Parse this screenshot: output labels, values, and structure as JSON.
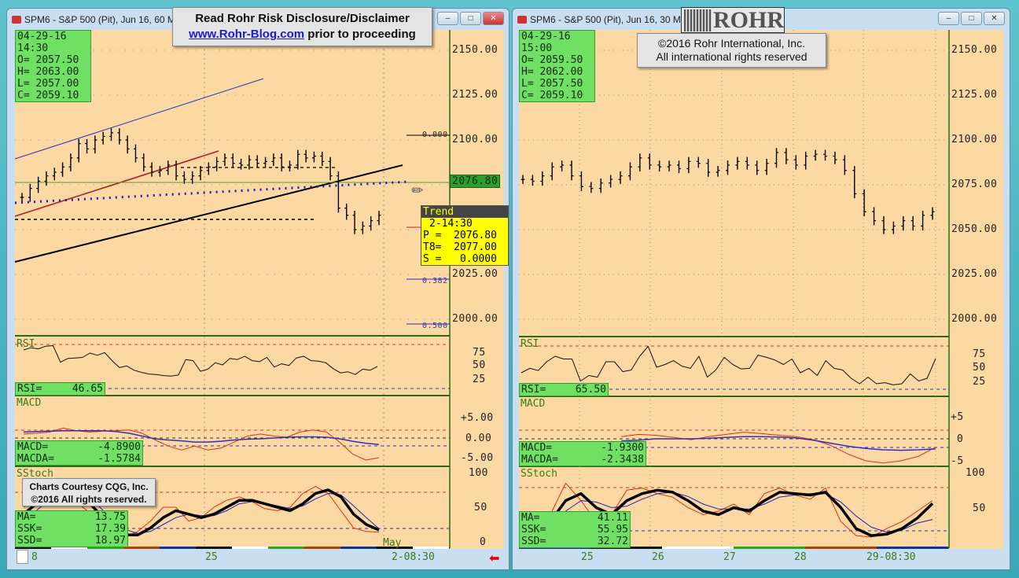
{
  "left_window": {
    "title": "SPM6 - S&P 500 (Pit), Jun 16, 60 Min",
    "ohlc": {
      "date": "04-29-16",
      "time": "14:30",
      "open": "O= 2057.50",
      "high": "H= 2063.00",
      "low": "L= 2057.00",
      "close": "C= 2059.10"
    },
    "price_axis": [
      "2150.00",
      "2125.00",
      "2100.00",
      "2076.80",
      "2025.00",
      "2000.00"
    ],
    "fib_labels": [
      "0.000",
      "0.382",
      "0.500"
    ],
    "tooltip": {
      "title": "Trend",
      "time": "2-14:30",
      "p": "P =  2076.80",
      "t8": "T8=  2077.00",
      "s": "S =   0.0000"
    },
    "rsi": {
      "name": "RSI",
      "label": "RSI=",
      "value": "46.65",
      "axis": [
        "75",
        "50",
        "25"
      ]
    },
    "macd": {
      "name": "MACD",
      "macd_label": "MACD=",
      "macd_value": "-4.8900",
      "macda_label": "MACDA=",
      "macda_value": "-1.5784",
      "axis": [
        "+5.00",
        "0.00",
        "-5.00"
      ]
    },
    "stoch": {
      "name": "SStoch",
      "ma_label": "MA=",
      "ma_value": "13.75",
      "ssk_label": "SSK=",
      "ssk_value": "17.39",
      "ssd_label": "SSD=",
      "ssd_value": "18.97",
      "axis": [
        "100",
        "50",
        "0"
      ],
      "month_label": "May"
    },
    "x_axis": [
      "8",
      "25",
      "2-08:30"
    ],
    "notice": {
      "line1": "Read Rohr Risk Disclosure/Disclaimer",
      "link": "www.Rohr-Blog.com",
      "line2_rest": " prior to proceeding"
    },
    "credit": {
      "line1": "Charts Courtesy CQG, Inc.",
      "line2": "©2016 All rights reserved."
    }
  },
  "right_window": {
    "title": "SPM6 - S&P 500 (Pit), Jun 16, 30 Min",
    "ohlc": {
      "date": "04-29-16",
      "time": "15:00",
      "open": "O= 2059.50",
      "high": "H= 2062.00",
      "low": "L= 2057.50",
      "close": "C= 2059.10"
    },
    "price_axis": [
      "2150.00",
      "2125.00",
      "2100.00",
      "2075.00",
      "2050.00",
      "2025.00",
      "2000.00"
    ],
    "logo": "ROHR",
    "notice": {
      "line1": "©2016 Rohr International, Inc.",
      "line2": "All international rights reserved"
    },
    "rsi": {
      "name": "RSI",
      "label": "RSI=",
      "value": "65.50",
      "axis": [
        "75",
        "50",
        "25"
      ]
    },
    "macd": {
      "name": "MACD",
      "macd_label": "MACD=",
      "macd_value": "-1.9300",
      "macda_label": "MACDA=",
      "macda_value": "-2.3438",
      "axis": [
        "+5",
        "0",
        "-5"
      ]
    },
    "stoch": {
      "name": "SStoch",
      "ma_label": "MA=",
      "ma_value": "41.11",
      "ssk_label": "SSK=",
      "ssk_value": "55.95",
      "ssd_label": "SSD=",
      "ssd_value": "32.72",
      "axis": [
        "100",
        "50"
      ]
    },
    "x_axis": [
      "25",
      "26",
      "27",
      "28",
      "29-08:30"
    ]
  },
  "colors": {
    "plot_bg": "#fcd9a2",
    "green_box": "#6fe063",
    "tooltip": "#ffff00",
    "last_price": "#2aa02a"
  },
  "chart_data": [
    {
      "type": "line",
      "series": [
        {
          "name": "price",
          "values": [
            2068,
            2073,
            2077,
            2080,
            2082,
            2085,
            2090,
            2098,
            2095,
            2100,
            2102,
            2104,
            2100,
            2095,
            2090,
            2085,
            2082,
            2083,
            2086,
            2080,
            2078,
            2080,
            2083,
            2085,
            2088,
            2090,
            2087,
            2086,
            2089,
            2087,
            2088,
            2090,
            2085,
            2086,
            2092,
            2090,
            2091,
            2088,
            2080,
            2062,
            2058,
            2050,
            2052,
            2055,
            2058
          ]
        },
        {
          "name": "RSI",
          "values": [
            78,
            82,
            80,
            85,
            86,
            55,
            62,
            63,
            64,
            72,
            68,
            73,
            58,
            45,
            48,
            40,
            36,
            33,
            32,
            30,
            29,
            31,
            60,
            58,
            38,
            42,
            54,
            50,
            62,
            60,
            66,
            58,
            56,
            64,
            46,
            52,
            49,
            63,
            66,
            58,
            57,
            54,
            43,
            35,
            37,
            32,
            42,
            40,
            47
          ]
        },
        {
          "name": "MACD",
          "values": [
            1.0,
            1.2,
            1.5,
            2.5,
            1.8,
            1.5,
            1.7,
            1.8,
            2.0,
            1.2,
            -0.5,
            -2.0,
            -3.0,
            -2.0,
            -3.0,
            -2.5,
            -1.0,
            0.5,
            1.0,
            0.5,
            0.2,
            1.5,
            2.0,
            1.5,
            -1.0,
            -4.0,
            -5.5,
            -4.9
          ]
        },
        {
          "name": "MACDA",
          "values": [
            1.5,
            1.6,
            1.7,
            1.8,
            1.8,
            1.8,
            1.8,
            1.6,
            1.2,
            0.5,
            -0.2,
            -0.5,
            -0.7,
            -1.0,
            -1.0,
            -0.8,
            -0.5,
            -0.3,
            -0.2,
            0.0,
            0.2,
            0.3,
            0.3,
            0.2,
            -0.2,
            -0.8,
            -1.3,
            -1.6
          ]
        },
        {
          "name": "SSK",
          "values": [
            40,
            55,
            70,
            75,
            70,
            60,
            40,
            20,
            10,
            10,
            20,
            35,
            45,
            40,
            35,
            40,
            50,
            60,
            60,
            55,
            50,
            45,
            55,
            70,
            75,
            65,
            40,
            25,
            17
          ]
        },
        {
          "name": "SSD",
          "values": [
            35,
            45,
            60,
            70,
            72,
            65,
            50,
            32,
            18,
            12,
            15,
            25,
            35,
            40,
            38,
            38,
            45,
            55,
            58,
            56,
            52,
            48,
            52,
            62,
            70,
            68,
            52,
            35,
            19
          ]
        },
        {
          "name": "MA",
          "values": [
            50,
            65,
            80,
            75,
            60,
            45,
            25,
            10,
            8,
            15,
            30,
            50,
            50,
            30,
            35,
            50,
            60,
            65,
            58,
            48,
            45,
            50,
            70,
            80,
            70,
            45,
            20,
            15,
            14
          ]
        }
      ]
    },
    {
      "type": "line",
      "series": [
        {
          "name": "price",
          "values": [
            2078,
            2077,
            2080,
            2085,
            2086,
            2080,
            2074,
            2073,
            2076,
            2078,
            2080,
            2085,
            2090,
            2086,
            2085,
            2086,
            2084,
            2088,
            2087,
            2082,
            2083,
            2086,
            2088,
            2086,
            2083,
            2087,
            2093,
            2089,
            2086,
            2091,
            2092,
            2091,
            2089,
            2083,
            2070,
            2060,
            2055,
            2050,
            2052,
            2055,
            2052,
            2058,
            2060
          ]
        },
        {
          "name": "RSI",
          "values": [
            40,
            48,
            44,
            60,
            70,
            65,
            65,
            25,
            35,
            32,
            60,
            60,
            42,
            45,
            70,
            88,
            50,
            55,
            62,
            52,
            48,
            70,
            32,
            45,
            68,
            55,
            47,
            48,
            72,
            68,
            63,
            55,
            65,
            40,
            48,
            35,
            62,
            48,
            45,
            30,
            20,
            32,
            20,
            22,
            18,
            20,
            38,
            25,
            30,
            66
          ]
        },
        {
          "name": "MACD",
          "values": [
            0.5,
            1.0,
            0.8,
            0.3,
            -0.2,
            0.5,
            1.0,
            1.5,
            1.2,
            0.8,
            0.5,
            -0.2,
            -1.5,
            -3.5,
            -5.0,
            -5.5,
            -5.0,
            -4.0,
            -1.9
          ]
        },
        {
          "name": "MACDA",
          "values": [
            -0.5,
            -0.3,
            0,
            0,
            0,
            0.1,
            0.3,
            0.5,
            0.5,
            0.4,
            0.2,
            -0.3,
            -1.0,
            -1.7,
            -2.2,
            -2.5,
            -2.6,
            -2.5,
            -2.3
          ]
        },
        {
          "name": "SSK",
          "values": [
            30,
            60,
            70,
            50,
            40,
            60,
            70,
            75,
            72,
            60,
            45,
            40,
            50,
            45,
            60,
            72,
            70,
            68,
            72,
            50,
            20,
            10,
            12,
            20,
            35,
            56
          ]
        },
        {
          "name": "SSD",
          "values": [
            25,
            45,
            60,
            58,
            50,
            52,
            62,
            70,
            72,
            66,
            55,
            48,
            48,
            48,
            55,
            65,
            68,
            70,
            70,
            58,
            38,
            22,
            15,
            18,
            28,
            33
          ]
        },
        {
          "name": "MA",
          "values": [
            40,
            85,
            60,
            30,
            40,
            75,
            78,
            70,
            65,
            50,
            40,
            45,
            55,
            40,
            70,
            78,
            68,
            62,
            78,
            30,
            10,
            8,
            20,
            30,
            45,
            60
          ]
        }
      ]
    }
  ]
}
